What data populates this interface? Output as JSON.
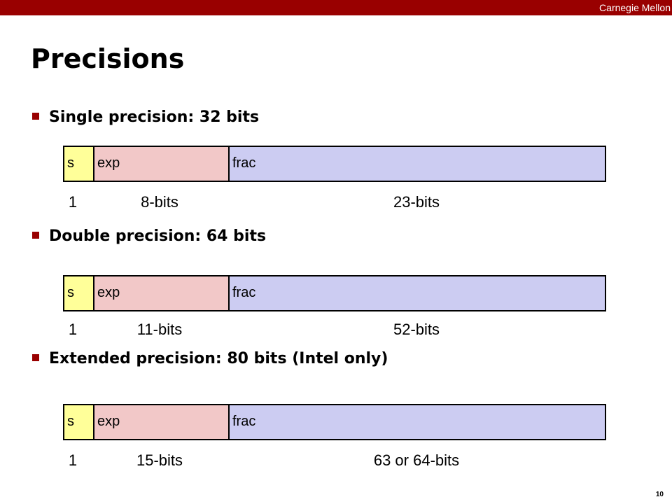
{
  "header": {
    "brand": "Carnegie Mellon",
    "title": "Precisions"
  },
  "sections": [
    {
      "heading": "Single precision: 32 bits",
      "fields": [
        "s",
        "exp",
        "frac"
      ],
      "widths": [
        "1",
        "8-bits",
        "23-bits"
      ]
    },
    {
      "heading": "Double precision: 64 bits",
      "fields": [
        "s",
        "exp",
        "frac"
      ],
      "widths": [
        "1",
        "11-bits",
        "52-bits"
      ]
    },
    {
      "heading": "Extended precision: 80 bits (Intel only)",
      "fields": [
        "s",
        "exp",
        "frac"
      ],
      "widths": [
        "1",
        "15-bits",
        "63 or 64-bits"
      ]
    }
  ],
  "footer": {
    "page": "10"
  }
}
